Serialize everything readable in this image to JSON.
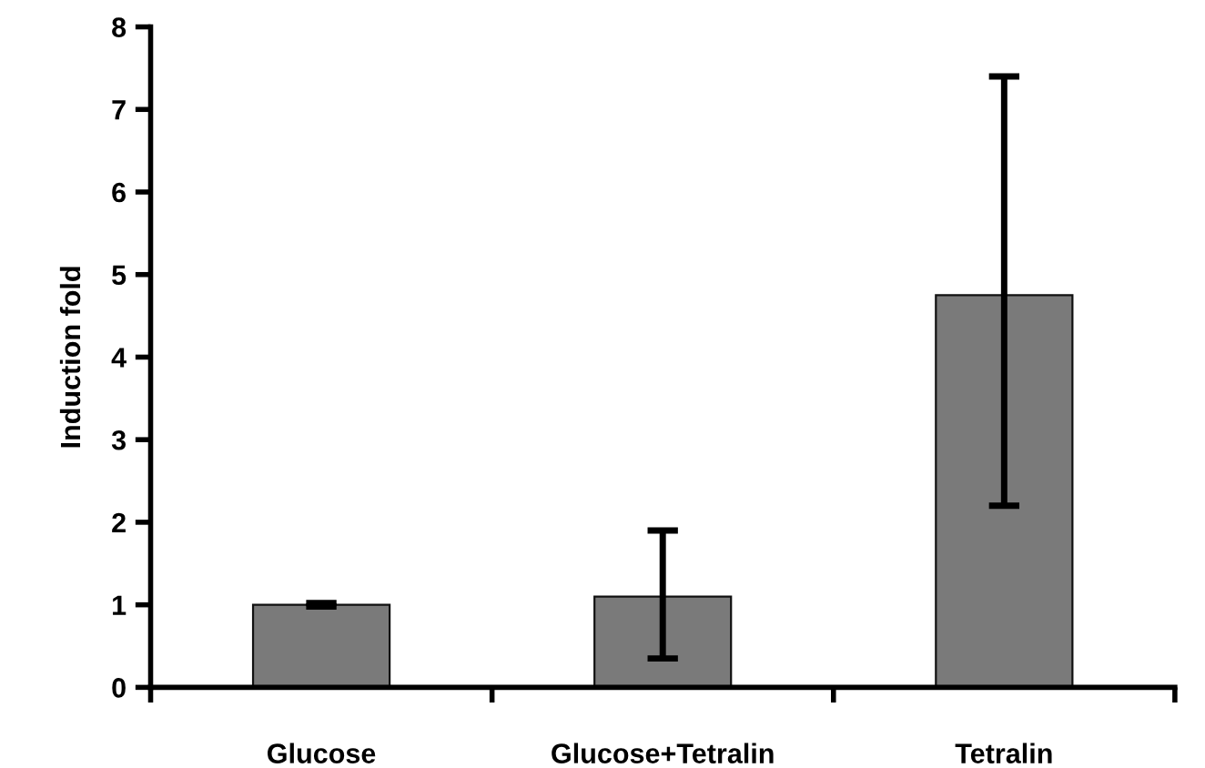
{
  "chart_data": {
    "type": "bar",
    "ylabel": "Induction fold",
    "categories": [
      "Glucose",
      "Glucose+Tetralin",
      "Tetralin"
    ],
    "values": [
      1.0,
      1.1,
      4.75
    ],
    "errors": [
      [
        0.98,
        1.02
      ],
      [
        0.35,
        1.9
      ],
      [
        2.2,
        7.4
      ]
    ],
    "color": "#7a7a7a",
    "ylim": [
      0,
      8
    ],
    "yticks": [
      0,
      1,
      2,
      3,
      4,
      5,
      6,
      7,
      8
    ],
    "grid": false
  }
}
